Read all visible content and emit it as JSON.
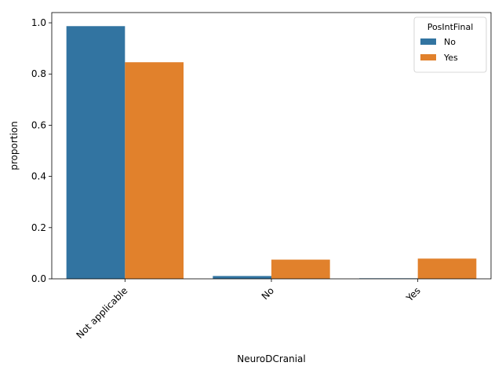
{
  "chart_data": {
    "type": "bar",
    "categories": [
      "Not applicable",
      "No",
      "Yes"
    ],
    "series": [
      {
        "name": "No",
        "color": "#3274a1",
        "values": [
          0.987,
          0.011,
          0.002
        ]
      },
      {
        "name": "Yes",
        "color": "#e1812c",
        "values": [
          0.846,
          0.075,
          0.079
        ]
      }
    ],
    "xlabel": "NeuroDCranial",
    "ylabel": "proportion",
    "ylim": [
      0,
      1.04
    ],
    "yticks": [
      0.0,
      0.2,
      0.4,
      0.6,
      0.8,
      1.0
    ],
    "ytick_labels": [
      "0.0",
      "0.2",
      "0.4",
      "0.6",
      "0.8",
      "1.0"
    ],
    "legend": {
      "title": "PosIntFinal",
      "placement": "top-right"
    },
    "grid": false
  }
}
